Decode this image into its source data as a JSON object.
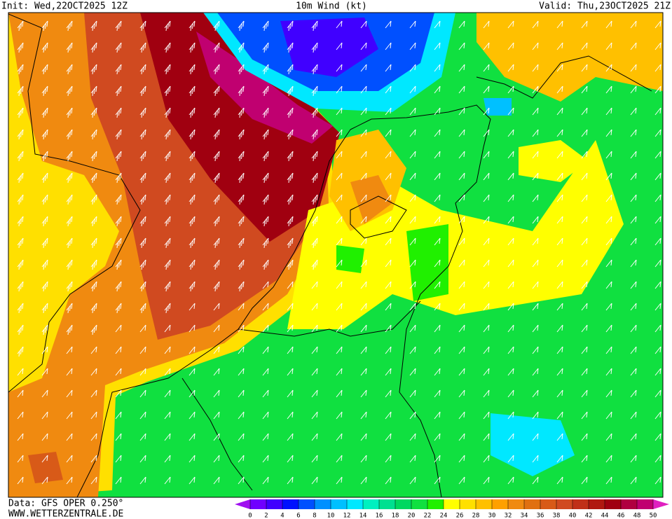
{
  "header": {
    "init": "Init: Wed,22OCT2025 12Z",
    "title": "10m Wind (kt)",
    "valid": "Valid: Thu,23OCT2025 21Z"
  },
  "footer": {
    "source": "Data: GFS OPER 0.250°",
    "website": "WWW.WETTERZENTRALE.DE"
  },
  "legend": {
    "ticks": [
      0,
      2,
      4,
      6,
      8,
      10,
      12,
      14,
      16,
      18,
      20,
      22,
      24,
      26,
      28,
      30,
      32,
      34,
      36,
      38,
      40,
      42,
      44,
      46,
      48,
      50
    ],
    "colors": [
      "#a010f0",
      "#7000ff",
      "#4000ff",
      "#0010ff",
      "#0050ff",
      "#0090ff",
      "#00c0ff",
      "#00e8ff",
      "#00f0c0",
      "#00e090",
      "#00d860",
      "#10e040",
      "#20f000",
      "#ffff00",
      "#ffe000",
      "#ffc000",
      "#ffa000",
      "#f08a10",
      "#e07010",
      "#d85a18",
      "#d04a20",
      "#c03018",
      "#b01810",
      "#a00010",
      "#b00040",
      "#c00070",
      "#e020c0"
    ]
  }
}
